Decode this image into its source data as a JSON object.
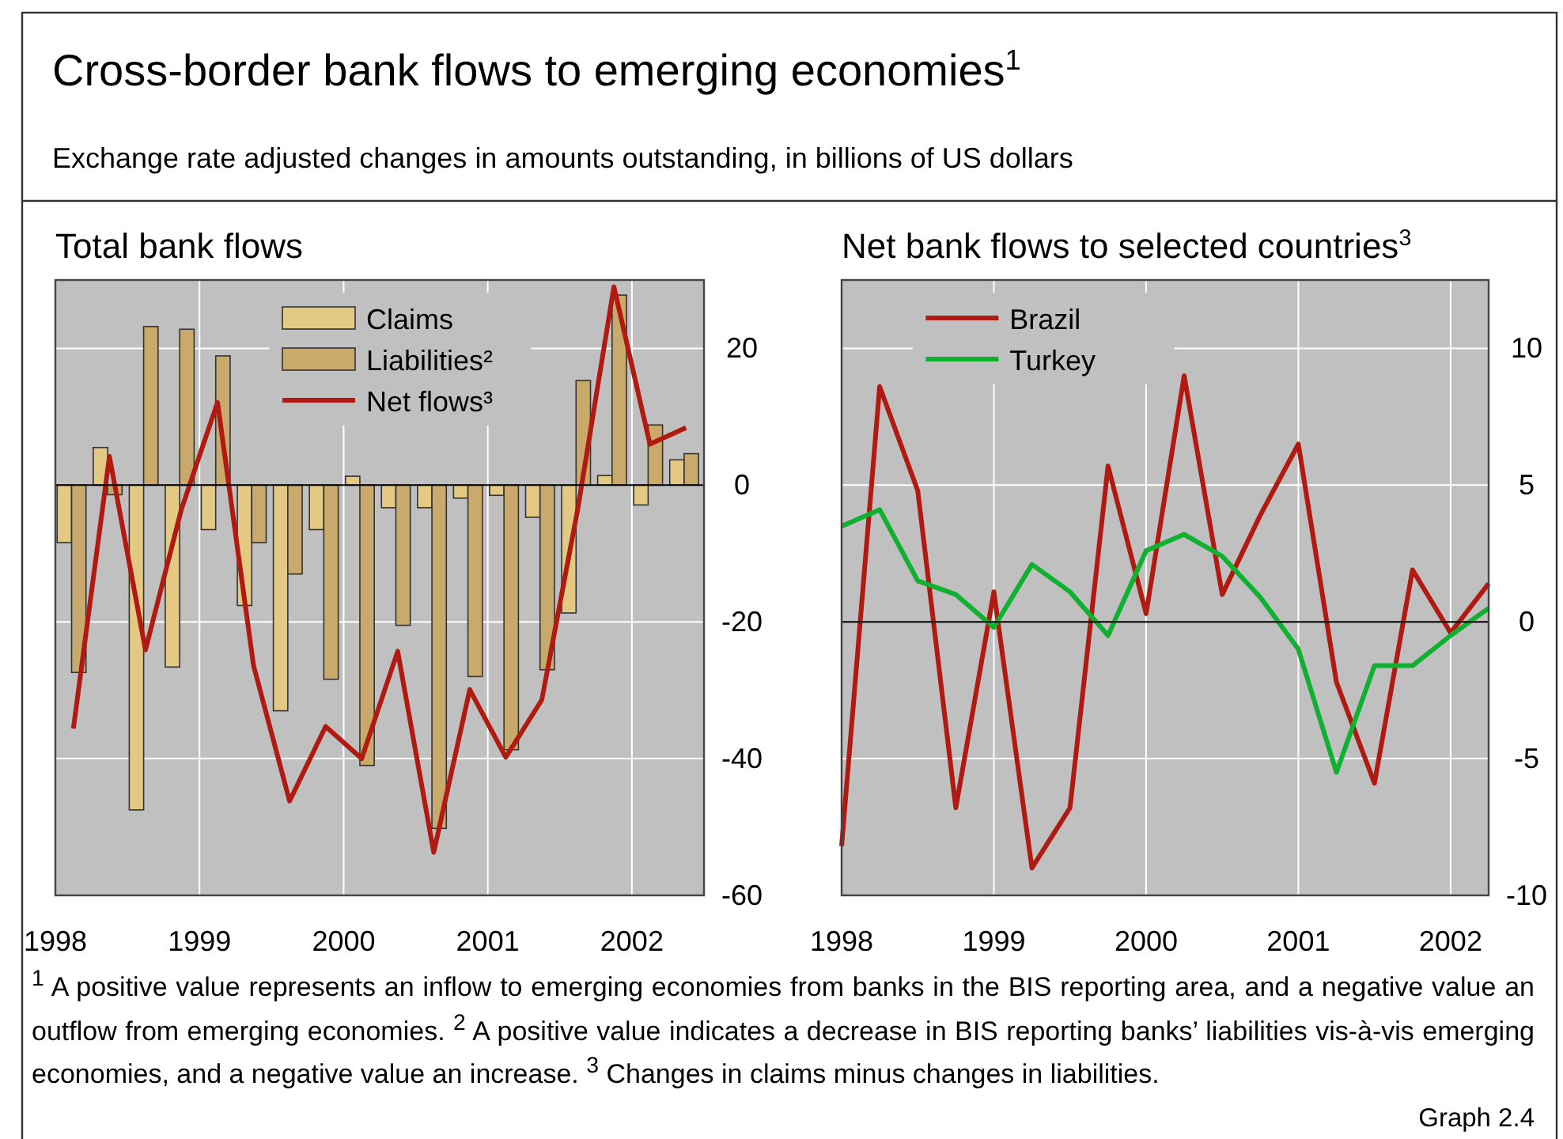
{
  "chart_data": [
    {
      "type": "bar",
      "title": "Total bank flows",
      "subtitle": "Exchange rate adjusted changes in amounts outstanding, in billions of US dollars",
      "annotations": [
        "Cross-border bank flows to emerging economies$^{1}$",
        "$^{1}$ A positive value represents an inflow to emerging economies from banks in the BIS reporting area, and a negative value an outflow from emerging economies.  $^{2}$ A positive value indicates a decrease in BIS reporting banks’ liabilities vis-à-vis emerging economies, and a negative value an increase.  $^{3}$ Changes in claims minus changes in liabilities.",
        "Graph 2.4"
      ],
      "x": [
        1998.125,
        1998.375,
        1998.625,
        1998.875,
        1999.125,
        1999.375,
        1999.625,
        1999.875,
        2000.125,
        2000.375,
        2000.625,
        2000.875,
        2001.125,
        2001.375,
        2001.625,
        2001.875,
        2002.125,
        2002.375
      ],
      "series": [
        {
          "name": "Claims",
          "color": "#e3c983",
          "values": [
            -8.4,
            5.5,
            -47.5,
            -26.6,
            -6.5,
            -17.6,
            -33,
            -6.5,
            1.3,
            -3.3,
            -3.3,
            -1.9,
            -1.5,
            -4.7,
            -18.7,
            1.4,
            -2.9,
            3.7
          ]
        },
        {
          "name": "Liabilities²",
          "color": "#c9aa6c",
          "values": [
            -27.4,
            -1.4,
            23.2,
            22.8,
            18.9,
            -8.4,
            -13,
            -28.4,
            -41,
            -20.5,
            -50.2,
            -28,
            -38.7,
            -27,
            15.3,
            27.8,
            8.8,
            4.6
          ]
        },
        {
          "name": "Net flows³",
          "type": "line",
          "color": "#b01a10",
          "values": [
            -35.6,
            4.2,
            -24.1,
            -3.5,
            12.1,
            -26.4,
            -46.2,
            -35.3,
            -40,
            -24.3,
            -53.7,
            -29.9,
            -39.8,
            -31.4,
            -3.4,
            29,
            6,
            8.4
          ]
        }
      ],
      "xlim": [
        1998,
        2002.5
      ],
      "xticks": [
        1998,
        1999,
        2000,
        2001,
        2002
      ],
      "ylim": [
        -60,
        30
      ],
      "yticks": [
        -60,
        -40,
        -20,
        0,
        20
      ],
      "grid": true,
      "legend": "top",
      "line_style": "solid",
      "marker": "none"
    },
    {
      "type": "line",
      "title": "Net bank flows to selected countries$^{3}$",
      "x": [
        1998,
        1998.25,
        1998.5,
        1998.75,
        1999,
        1999.25,
        1999.5,
        1999.75,
        2000,
        2000.25,
        2000.5,
        2000.75,
        2001,
        2001.25,
        2001.5,
        2001.75,
        2002,
        2002.25
      ],
      "series": [
        {
          "name": "Brazil",
          "color": "#b01a10",
          "values": [
            -8.2,
            8.6,
            4.8,
            -6.8,
            1.1,
            -9,
            -6.8,
            5.7,
            0.3,
            9,
            1,
            3.9,
            6.5,
            -2.2,
            -5.9,
            1.9,
            -0.4,
            1.4
          ]
        },
        {
          "name": "Turkey",
          "color": "#10b030",
          "values": [
            3.5,
            4.1,
            1.5,
            1,
            -0.2,
            2.1,
            1.1,
            -0.5,
            2.6,
            3.2,
            2.4,
            0.9,
            -1,
            -5.5,
            -1.6,
            -1.6,
            -0.5,
            0.5
          ]
        }
      ],
      "xlim": [
        1998,
        2002.25
      ],
      "xticks": [
        1998,
        1999,
        2000,
        2001,
        2002
      ],
      "ylim": [
        -10,
        12.5
      ],
      "yticks": [
        -10,
        -5,
        0,
        5,
        10
      ],
      "grid": true,
      "legend": "top left",
      "line_style": "solid",
      "marker": "none"
    }
  ]
}
